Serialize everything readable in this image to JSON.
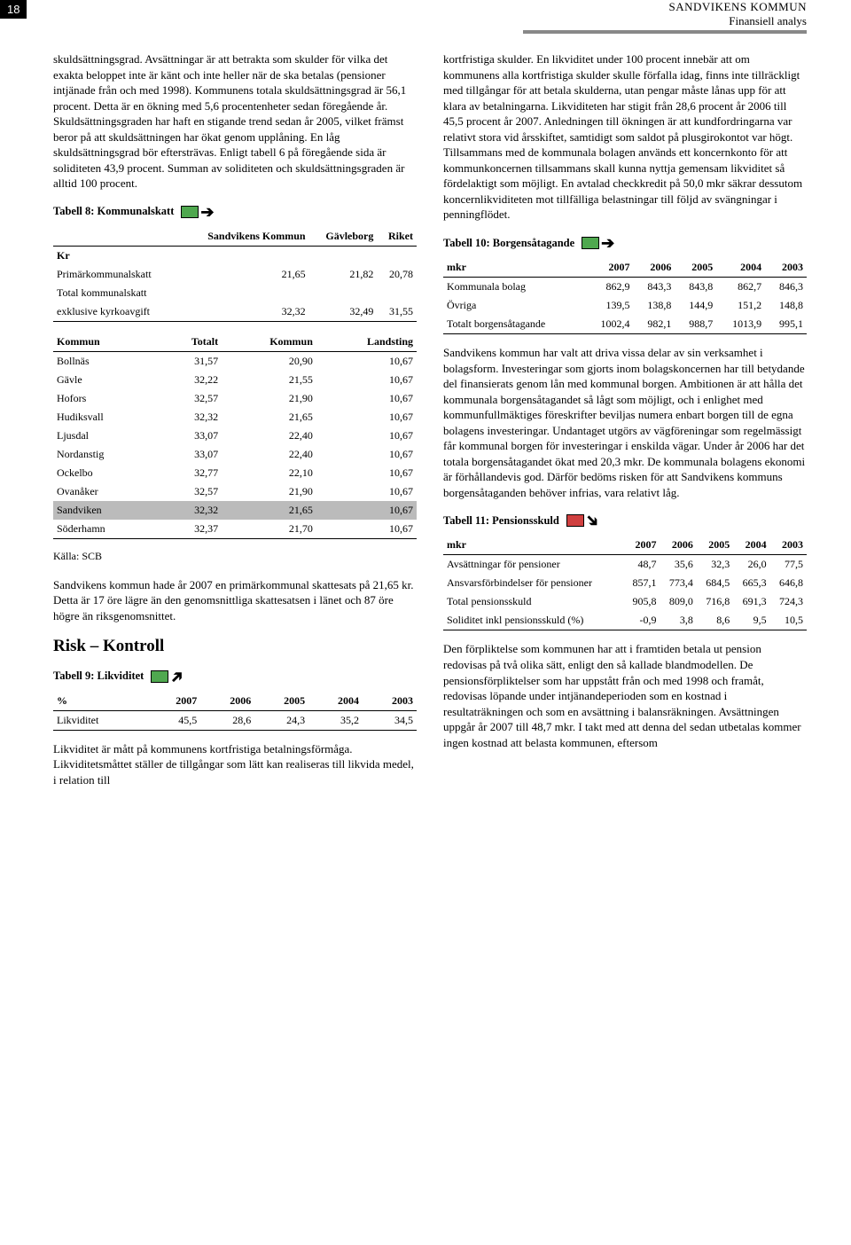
{
  "header": {
    "page_number": "18",
    "title": "SANDVIKENS KOMMUN",
    "subtitle": "Finansiell analys"
  },
  "indicator_colors": {
    "green": "#4fa84f",
    "red": "#d04040"
  },
  "left": {
    "p1": "skuldsättningsgrad. Avsättningar är att betrakta som skulder för vilka det exakta beloppet inte är känt och inte heller när de ska betalas (pensioner intjänade från och med 1998). Kommunens totala skuldsättningsgrad är 56,1 procent. Detta är en ökning med 5,6 procentenheter sedan föregående år. Skuldsättningsgraden har haft en stigande trend sedan år 2005, vilket främst beror på att skuldsättningen har ökat genom upplåning. En låg skuldsättningsgrad bör eftersträvas. Enligt tabell 6 på föregående sida är soliditeten 43,9 procent. Summan av soliditeten och skuldsättningsgraden är alltid 100 procent.",
    "t8_title": "Tabell 8: Kommunalskatt",
    "t8_head_col1": "Sandvikens Kommun",
    "t8_head_col2": "Gävleborg",
    "t8_head_col3": "Riket",
    "t8_kr": "Kr",
    "t8_r1_label": "Primärkommunalskatt",
    "t8_r1_c1": "21,65",
    "t8_r1_c2": "21,82",
    "t8_r1_c3": "20,78",
    "t8_r2_label": "Total kommunalskatt",
    "t8_r3_label": "exklusive kyrkoavgift",
    "t8_r3_c1": "32,32",
    "t8_r3_c2": "32,49",
    "t8_r3_c3": "31,55",
    "t8b_h1": "Kommun",
    "t8b_h2": "Totalt",
    "t8b_h3": "Kommun",
    "t8b_h4": "Landsting",
    "t8b_rows": [
      [
        "Bollnäs",
        "31,57",
        "20,90",
        "10,67"
      ],
      [
        "Gävle",
        "32,22",
        "21,55",
        "10,67"
      ],
      [
        "Hofors",
        "32,57",
        "21,90",
        "10,67"
      ],
      [
        "Hudiksvall",
        "32,32",
        "21,65",
        "10,67"
      ],
      [
        "Ljusdal",
        "33,07",
        "22,40",
        "10,67"
      ],
      [
        "Nordanstig",
        "33,07",
        "22,40",
        "10,67"
      ],
      [
        "Ockelbo",
        "32,77",
        "22,10",
        "10,67"
      ],
      [
        "Ovanåker",
        "32,57",
        "21,90",
        "10,67"
      ],
      [
        "Sandviken",
        "32,32",
        "21,65",
        "10,67"
      ],
      [
        "Söderhamn",
        "32,37",
        "21,70",
        "10,67"
      ]
    ],
    "t8b_highlight_index": 8,
    "source": "Källa: SCB",
    "p2": "Sandvikens kommun hade år 2007 en primärkommunal skattesats på 21,65 kr. Detta är 17 öre lägre än den genomsnittliga skattesatsen i länet och 87 öre högre än riksgenomsnittet.",
    "section_risk": "Risk – Kontroll",
    "t9_title": "Tabell 9: Likviditet",
    "years": [
      "2007",
      "2006",
      "2005",
      "2004",
      "2003"
    ],
    "t9_unit": "%",
    "t9_row_label": "Likviditet",
    "t9_vals": [
      "45,5",
      "28,6",
      "24,3",
      "35,2",
      "34,5"
    ],
    "p3": "Likviditet är mått på kommunens kortfristiga betalningsförmåga. Likviditetsmåttet ställer de tillgångar som lätt kan realiseras till likvida medel, i relation till"
  },
  "right": {
    "p1": "kortfristiga skulder. En likviditet under 100 procent innebär att om kommunens alla kortfristiga skulder skulle förfalla idag, finns inte tillräckligt med tillgångar för att betala skulderna, utan pengar måste lånas upp för att klara av betalningarna. Likviditeten har stigit från 28,6 procent år 2006 till 45,5 procent år 2007. Anledningen till ökningen är att kundfordringarna var relativt stora vid årsskiftet, samtidigt som saldot på plusgirokontot var högt. Tillsammans med de kommunala bolagen används ett koncernkonto för att kommunkoncernen tillsammans skall kunna nyttja gemensam likviditet så fördelaktigt som möjligt. En avtalad checkkredit på 50,0 mkr säkrar dessutom koncernlikviditeten mot tillfälliga belastningar till följd av svängningar i penningflödet.",
    "t10_title": "Tabell 10: Borgensåtagande",
    "t10_unit": "mkr",
    "t10_rows": [
      [
        "Kommunala bolag",
        "862,9",
        "843,3",
        "843,8",
        "862,7",
        "846,3"
      ],
      [
        "Övriga",
        "139,5",
        "138,8",
        "144,9",
        "151,2",
        "148,8"
      ],
      [
        "Totalt borgensåtagande",
        "1002,4",
        "982,1",
        "988,7",
        "1013,9",
        "995,1"
      ]
    ],
    "p2": "Sandvikens kommun har valt att driva vissa delar av sin verksamhet i bolagsform. Investeringar som gjorts inom bolagskoncernen har till betydande del finansierats genom lån med kommunal borgen. Ambitionen är att hålla det kommunala borgensåtagandet så lågt som möjligt, och i enlighet med kommunfullmäktiges föreskrifter beviljas numera enbart borgen till de egna bolagens investeringar. Undantaget utgörs av vägföreningar som regelmässigt får kommunal borgen för investeringar i enskilda vägar. Under år 2006 har det totala borgensåtagandet ökat med 20,3 mkr. De kommunala bolagens ekonomi är förhållandevis god. Därför bedöms risken för att Sandvikens kommuns borgensåtaganden behöver infrias, vara relativt låg.",
    "t11_title": "Tabell 11: Pensionsskuld",
    "t11_unit": "mkr",
    "t11_rows": [
      [
        "Avsättningar för pensioner",
        "48,7",
        "35,6",
        "32,3",
        "26,0",
        "77,5"
      ],
      [
        "Ansvarsförbindelser för pensioner",
        "857,1",
        "773,4",
        "684,5",
        "665,3",
        "646,8"
      ],
      [
        "Total pensionsskuld",
        "905,8",
        "809,0",
        "716,8",
        "691,3",
        "724,3"
      ],
      [
        "Soliditet inkl pensionsskuld (%)",
        "-0,9",
        "3,8",
        "8,6",
        "9,5",
        "10,5"
      ]
    ],
    "p3": "Den förpliktelse som kommunen har att i framtiden betala ut pension redovisas på två olika sätt, enligt den så kallade blandmodellen. De pensionsförpliktelser som har uppstått från och med 1998 och framåt, redovisas löpande under intjänandeperioden som en kostnad i resultaträkningen och som en avsättning i balansräkningen. Avsättningen uppgår år 2007 till 48,7 mkr. I takt med att denna del sedan utbetalas kommer ingen kostnad att belasta kommunen, eftersom"
  }
}
